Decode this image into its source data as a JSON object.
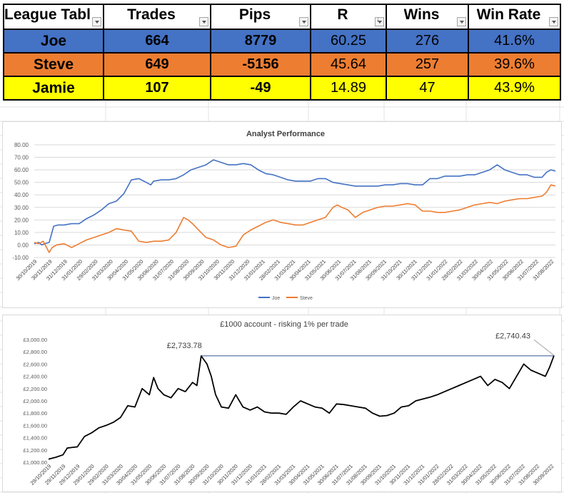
{
  "table": {
    "headers": [
      "League Tabl",
      "Trades",
      "Pips",
      "R",
      "Wins",
      "Win Rate"
    ],
    "rows": [
      {
        "name": "Joe",
        "trades": "664",
        "pips": "8779",
        "r": "60.25",
        "wins": "276",
        "win_rate": "41.6%"
      },
      {
        "name": "Steve",
        "trades": "649",
        "pips": "-5156",
        "r": "45.64",
        "wins": "257",
        "win_rate": "39.6%"
      },
      {
        "name": "Jamie",
        "trades": "107",
        "pips": "-49",
        "r": "14.89",
        "wins": "47",
        "win_rate": "43.9%"
      }
    ],
    "row_colors": [
      "#4472c4",
      "#ed7d31",
      "#ffff00"
    ]
  },
  "chart_data": [
    {
      "type": "line",
      "title": "Analyst Performance",
      "xlabel": "",
      "ylabel": "",
      "ylim": [
        -10,
        80
      ],
      "yticks": [
        "-10.00",
        "0.00",
        "10.00",
        "20.00",
        "30.00",
        "40.00",
        "50.00",
        "60.00",
        "70.00",
        "80.00"
      ],
      "xticks": [
        "30/10/2019",
        "30/11/2019",
        "31/12/2019",
        "31/01/2020",
        "29/02/2020",
        "31/03/2020",
        "30/04/2020",
        "31/05/2020",
        "30/06/2020",
        "31/07/2020",
        "31/08/2020",
        "30/09/2020",
        "31/10/2020",
        "30/11/2020",
        "31/12/2020",
        "31/01/2021",
        "28/02/2021",
        "31/03/2021",
        "30/04/2021",
        "31/05/2021",
        "30/06/2021",
        "31/07/2021",
        "31/08/2021",
        "30/09/2021",
        "31/10/2021",
        "30/11/2021",
        "31/12/2021",
        "31/01/2022",
        "28/02/2022",
        "31/03/2022",
        "30/04/2022",
        "31/05/2022",
        "30/06/2022",
        "31/07/2022",
        "31/08/2022"
      ],
      "legend_position": "bottom",
      "grid": true,
      "series": [
        {
          "name": "Joe",
          "color": "#4472c4",
          "x": [
            0,
            0.3,
            0.5,
            0.7,
            1.0,
            1.3,
            1.6,
            2,
            2.5,
            3,
            3.5,
            4,
            4.5,
            5,
            5.5,
            6,
            6.5,
            7,
            7.5,
            7.8,
            8,
            8.5,
            9,
            9.5,
            10,
            10.5,
            11,
            11.5,
            12,
            12.5,
            13,
            13.5,
            14,
            14.5,
            15,
            15.5,
            16,
            16.5,
            17,
            17.5,
            18,
            18.5,
            19,
            19.5,
            20,
            20.5,
            21,
            21.5,
            22,
            22.5,
            23,
            23.5,
            24,
            24.5,
            25,
            25.5,
            26,
            26.5,
            27,
            27.5,
            28,
            28.5,
            29,
            29.5,
            30,
            30.5,
            31,
            31.5,
            32,
            32.5,
            33,
            33.5,
            34,
            34.3,
            34.6,
            34.9
          ],
          "values": [
            1,
            2,
            0,
            1,
            2,
            15,
            16,
            16,
            17,
            17,
            21,
            24,
            28,
            33,
            35,
            41,
            52,
            53,
            50,
            48,
            51,
            52,
            52,
            53,
            56,
            60,
            62,
            64,
            68,
            66,
            64,
            64,
            65,
            64,
            60,
            57,
            56,
            54,
            52,
            51,
            51,
            51,
            53,
            53,
            50,
            49,
            48,
            47,
            47,
            47,
            47,
            48,
            48,
            49,
            49,
            48,
            48,
            53,
            53,
            55,
            55,
            55,
            56,
            56,
            58,
            60,
            64,
            60,
            58,
            56,
            56,
            54,
            54,
            58,
            60,
            59
          ]
        },
        {
          "name": "Steve",
          "color": "#ed7d31",
          "x": [
            0,
            0.3,
            0.6,
            1,
            1.2,
            1.5,
            2,
            2.5,
            3,
            3.5,
            4,
            4.5,
            5,
            5.5,
            6,
            6.5,
            7,
            7.5,
            8,
            8.5,
            9,
            9.5,
            10,
            10.3,
            10.6,
            11,
            11.5,
            12,
            12.5,
            13,
            13.5,
            14,
            14.5,
            15,
            15.5,
            16,
            16.5,
            17,
            17.5,
            18,
            18.5,
            19,
            19.5,
            20,
            20.3,
            20.6,
            21,
            21.5,
            22,
            22.5,
            23,
            23.5,
            24,
            24.5,
            25,
            25.5,
            26,
            26.5,
            27,
            27.5,
            28,
            28.5,
            29,
            29.5,
            30,
            30.5,
            31,
            31.5,
            32,
            32.5,
            33,
            33.5,
            34,
            34.3,
            34.6,
            34.9
          ],
          "values": [
            2,
            1,
            3,
            -6,
            -2,
            0,
            1,
            -2,
            1,
            4,
            6,
            8,
            10,
            13,
            12,
            11,
            3,
            2,
            3,
            3,
            4,
            10,
            22,
            20,
            17,
            12,
            6,
            4,
            0,
            -2,
            -1,
            8,
            12,
            15,
            18,
            20,
            18,
            17,
            16,
            16,
            18,
            20,
            22,
            30,
            32,
            30,
            28,
            22,
            26,
            28,
            30,
            31,
            31,
            32,
            33,
            32,
            27,
            27,
            26,
            26,
            27,
            28,
            30,
            32,
            33,
            34,
            33,
            35,
            36,
            37,
            37,
            38,
            39,
            42,
            48,
            47
          ]
        }
      ]
    },
    {
      "type": "line",
      "title": "£1000 account - risking 1% per trade",
      "xlabel": "",
      "ylabel": "",
      "ylim": [
        1000,
        3000
      ],
      "yticks": [
        "£1,000.00",
        "£1,200.00",
        "£1,400.00",
        "£1,600.00",
        "£1,800.00",
        "£2,000.00",
        "£2,200.00",
        "£2,400.00",
        "£2,600.00",
        "£2,800.00",
        "£3,000.00"
      ],
      "xticks": [
        "29/10/2019",
        "29/11/2019",
        "29/12/2019",
        "29/01/2020",
        "29/02/2020",
        "31/03/2020",
        "30/04/2020",
        "31/05/2020",
        "30/06/2020",
        "31/07/2020",
        "31/08/2020",
        "30/09/2020",
        "31/10/2020",
        "30/11/2020",
        "31/12/2020",
        "31/01/2021",
        "28/02/2021",
        "31/03/2021",
        "30/04/2021",
        "31/05/2021",
        "30/06/2021",
        "31/07/2021",
        "31/08/2021",
        "30/09/2021",
        "31/10/2021",
        "30/11/2021",
        "31/12/2021",
        "31/01/2022",
        "28/02/2022",
        "31/03/2022",
        "30/04/2022",
        "31/05/2022",
        "30/06/2022",
        "31/07/2022",
        "31/08/2022",
        "30/09/2022"
      ],
      "grid": false,
      "annotations": [
        {
          "label": "£2,733.78",
          "value": 2733.78
        },
        {
          "label": "£2,740.43",
          "value": 2740.43
        }
      ],
      "reference_line": 2733.78,
      "series": [
        {
          "name": "",
          "color": "#000000",
          "x": [
            0,
            0.5,
            1,
            1.3,
            1.6,
            2,
            2.5,
            3,
            3.5,
            4,
            4.5,
            5,
            5.5,
            6,
            6.5,
            7,
            7.3,
            7.6,
            8,
            8.5,
            9,
            9.5,
            10,
            10.3,
            10.6,
            11,
            11.3,
            11.6,
            12,
            12.5,
            13,
            13.5,
            14,
            14.5,
            15,
            15.5,
            16,
            16.5,
            17,
            17.5,
            18,
            18.5,
            19,
            19.5,
            20,
            20.5,
            21,
            21.5,
            22,
            22.5,
            23,
            23.5,
            24,
            24.5,
            25,
            25.5,
            26,
            26.5,
            27,
            27.5,
            28,
            28.5,
            29,
            29.5,
            30,
            30.5,
            31,
            31.5,
            32,
            32.5,
            33,
            33.5,
            34,
            34.5,
            34.8,
            35.1
          ],
          "values": [
            1050,
            1080,
            1120,
            1230,
            1240,
            1250,
            1420,
            1480,
            1560,
            1600,
            1650,
            1730,
            1920,
            1900,
            2200,
            2100,
            2380,
            2200,
            2100,
            2050,
            2200,
            2150,
            2300,
            2250,
            2733,
            2600,
            2400,
            2100,
            1900,
            1880,
            2100,
            1900,
            1850,
            1900,
            1820,
            1800,
            1800,
            1780,
            1900,
            2000,
            1950,
            1900,
            1880,
            1800,
            1950,
            1940,
            1920,
            1900,
            1880,
            1800,
            1750,
            1760,
            1800,
            1900,
            1920,
            2000,
            2030,
            2060,
            2100,
            2150,
            2200,
            2250,
            2300,
            2350,
            2400,
            2250,
            2350,
            2300,
            2200,
            2400,
            2600,
            2500,
            2450,
            2400,
            2550,
            2740
          ]
        }
      ]
    }
  ]
}
